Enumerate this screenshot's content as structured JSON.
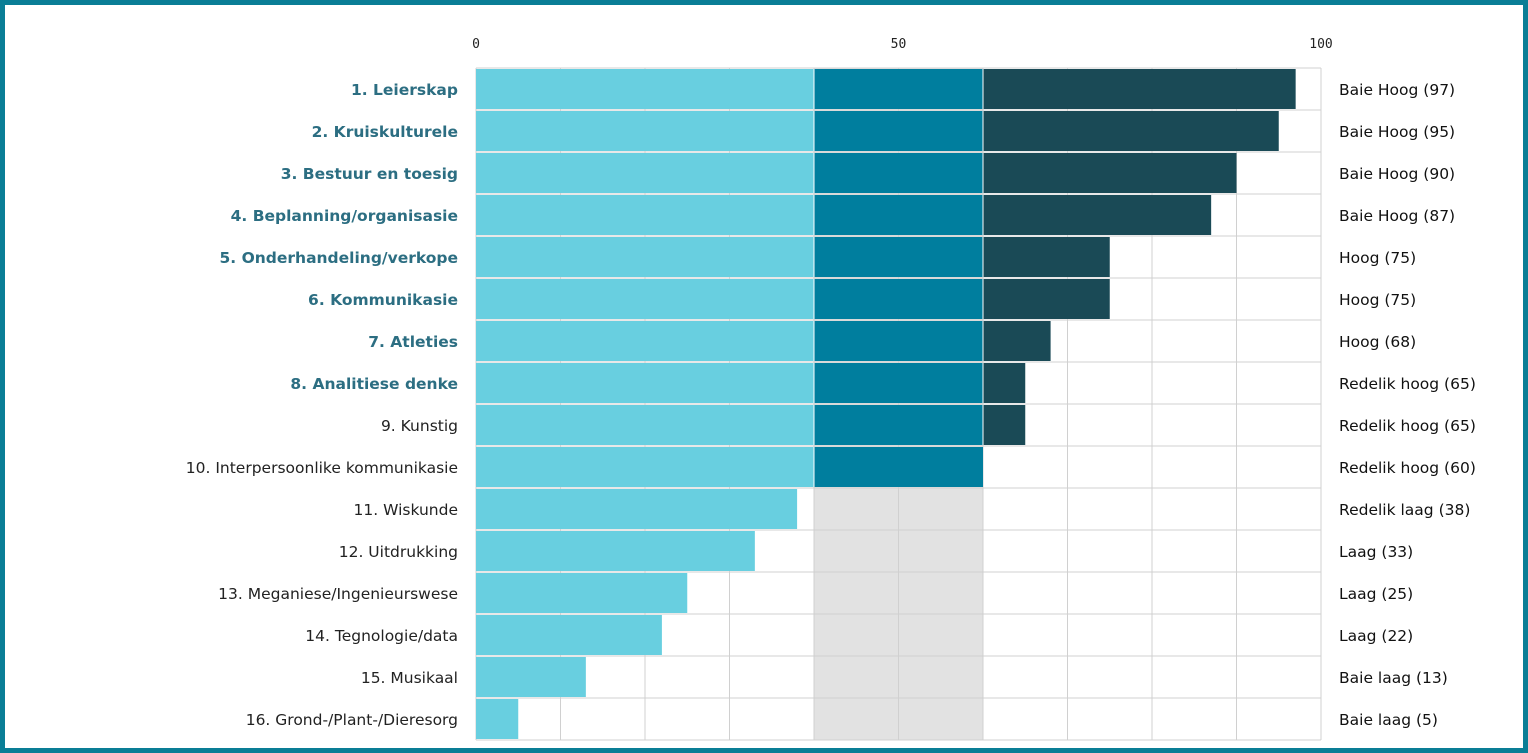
{
  "chart_data": {
    "type": "bar",
    "orientation": "horizontal",
    "xlim": [
      0,
      100
    ],
    "ticks": [
      {
        "value": 0,
        "label": "0"
      },
      {
        "value": 50,
        "label": "50"
      },
      {
        "value": 100,
        "label": "100"
      }
    ],
    "grid": true,
    "band_thresholds": [
      40,
      60
    ],
    "colors": {
      "low": "#68cfe0",
      "mid": "#007e9e",
      "high": "#1a4a56",
      "neutral_band": "#e2e2e2",
      "grid": "#d0d0d0",
      "highlight_label": "#2c6e82",
      "normal_label": "#222222"
    },
    "items": [
      {
        "label": "1. Leierskap",
        "value": 97,
        "rating": "Baie Hoog (97)",
        "highlight": true
      },
      {
        "label": "2. Kruiskulturele",
        "value": 95,
        "rating": "Baie Hoog (95)",
        "highlight": true
      },
      {
        "label": "3. Bestuur en toesig",
        "value": 90,
        "rating": "Baie Hoog (90)",
        "highlight": true
      },
      {
        "label": "4. Beplanning/organisasie",
        "value": 87,
        "rating": "Baie Hoog (87)",
        "highlight": true
      },
      {
        "label": "5. Onderhandeling/verkope",
        "value": 75,
        "rating": "Hoog (75)",
        "highlight": true
      },
      {
        "label": "6. Kommunikasie",
        "value": 75,
        "rating": "Hoog (75)",
        "highlight": true
      },
      {
        "label": "7. Atleties",
        "value": 68,
        "rating": "Hoog (68)",
        "highlight": true
      },
      {
        "label": "8. Analitiese denke",
        "value": 65,
        "rating": "Redelik hoog (65)",
        "highlight": true
      },
      {
        "label": "9. Kunstig",
        "value": 65,
        "rating": "Redelik hoog (65)",
        "highlight": false
      },
      {
        "label": "10. Interpersoonlike kommunikasie",
        "value": 60,
        "rating": "Redelik hoog (60)",
        "highlight": false
      },
      {
        "label": "11. Wiskunde",
        "value": 38,
        "rating": "Redelik laag (38)",
        "highlight": false
      },
      {
        "label": "12. Uitdrukking",
        "value": 33,
        "rating": "Laag (33)",
        "highlight": false
      },
      {
        "label": "13. Meganiese/Ingenieurswese",
        "value": 25,
        "rating": "Laag (25)",
        "highlight": false
      },
      {
        "label": "14. Tegnologie/data",
        "value": 22,
        "rating": "Laag (22)",
        "highlight": false
      },
      {
        "label": "15. Musikaal",
        "value": 13,
        "rating": "Baie laag (13)",
        "highlight": false
      },
      {
        "label": "16. Grond-/Plant-/Dieresorg",
        "value": 5,
        "rating": "Baie laag (5)",
        "highlight": false
      }
    ]
  }
}
